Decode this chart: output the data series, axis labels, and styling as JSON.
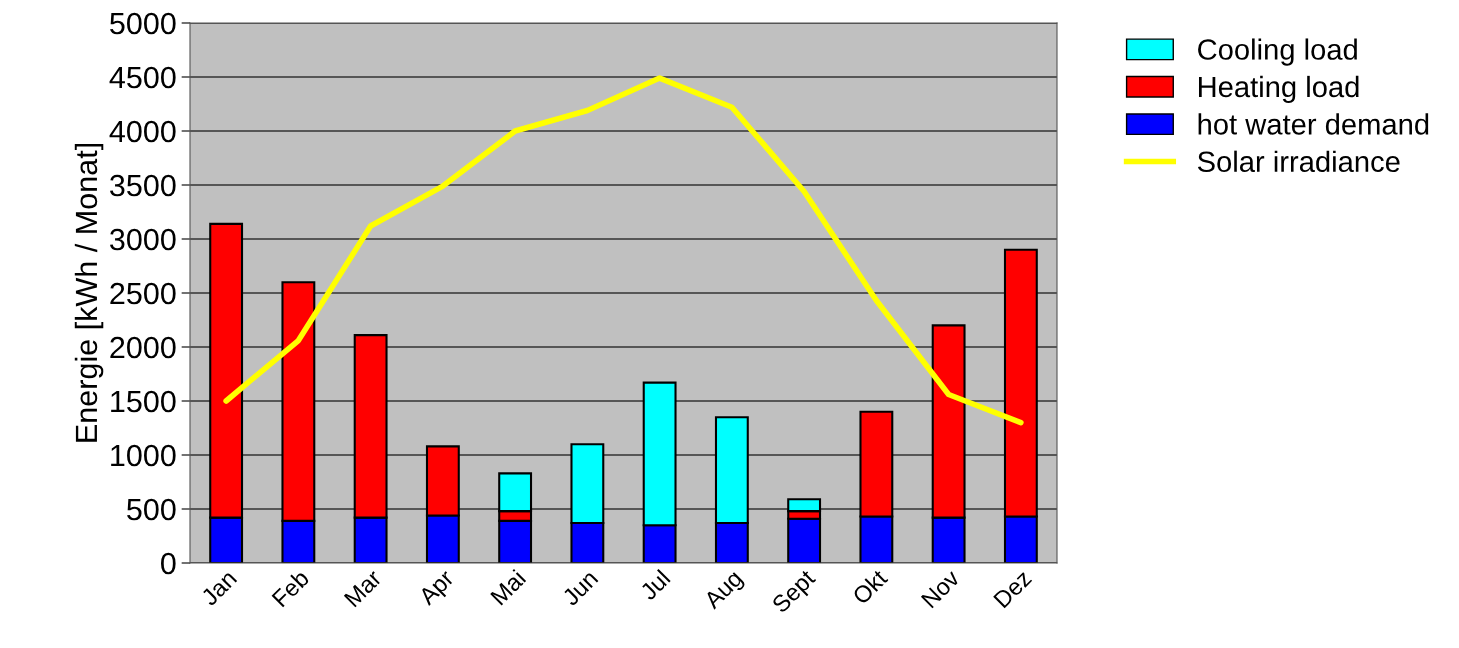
{
  "chart_data": {
    "type": "bar",
    "stacked": true,
    "ylabel": "Energie [kWh / Monat]",
    "categories": [
      "Jan",
      "Feb",
      "Mar",
      "Apr",
      "Mai",
      "Jun",
      "Jul",
      "Aug",
      "Sept",
      "Okt",
      "Nov",
      "Dez"
    ],
    "series": [
      {
        "name": "hot water demand",
        "color": "#0000ff",
        "values": [
          420,
          390,
          420,
          440,
          390,
          370,
          350,
          370,
          410,
          430,
          420,
          430
        ]
      },
      {
        "name": "Heating load",
        "color": "#ff0000",
        "values": [
          2720,
          2210,
          1690,
          640,
          90,
          null,
          null,
          null,
          70,
          970,
          1780,
          2470
        ]
      },
      {
        "name": "Cooling load",
        "color": "#00ffff",
        "values": [
          null,
          null,
          null,
          null,
          350,
          730,
          1320,
          980,
          110,
          null,
          null,
          null
        ]
      },
      {
        "name": "Solar irradiance",
        "type": "line",
        "color": "#ffff00",
        "values": [
          1500,
          2060,
          3120,
          3490,
          4000,
          4190,
          4490,
          4220,
          3440,
          2430,
          1560,
          1300
        ]
      }
    ],
    "ylim": [
      0,
      5000
    ],
    "yticks": [
      0,
      500,
      1000,
      1500,
      2000,
      2500,
      3000,
      3500,
      4000,
      4500,
      5000
    ],
    "grid": "y",
    "legend": "top right",
    "marker": "none"
  }
}
